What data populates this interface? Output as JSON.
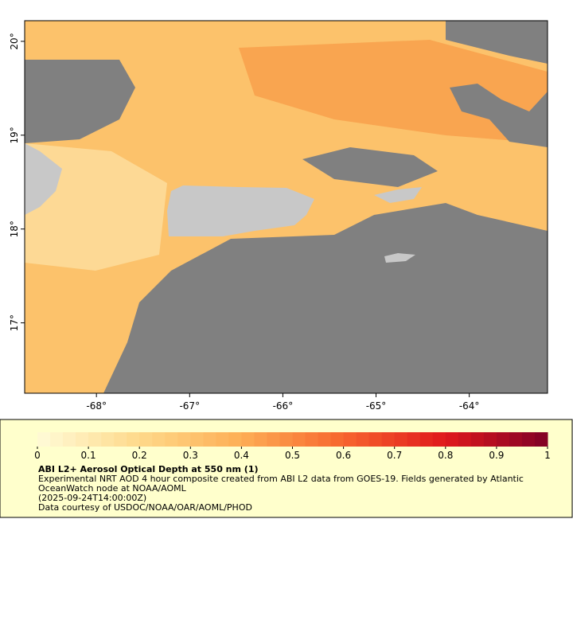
{
  "map": {
    "xlim": [
      -68.77,
      -63.16
    ],
    "ylim": [
      16.25,
      20.22
    ],
    "xticks": [
      {
        "value": -68,
        "label": "-68°"
      },
      {
        "value": -67,
        "label": "-67°"
      },
      {
        "value": -66,
        "label": "-66°"
      },
      {
        "value": -65,
        "label": "-65°"
      },
      {
        "value": -64,
        "label": "-64°"
      }
    ],
    "yticks": [
      {
        "value": 17,
        "label": "17°"
      },
      {
        "value": 18,
        "label": "18°"
      },
      {
        "value": 19,
        "label": "19°"
      },
      {
        "value": 20,
        "label": "20°"
      }
    ]
  },
  "colorbar": {
    "lim": [
      0,
      1
    ],
    "steps": 40,
    "colors": [
      "#fffbd8",
      "#fed98a",
      "#fdae55",
      "#f7652e",
      "#e0181c",
      "#800026"
    ],
    "ticks": [
      0,
      0.1,
      0.2,
      0.3,
      0.4,
      0.5,
      0.6,
      0.7,
      0.8,
      0.9,
      1
    ]
  },
  "caption": {
    "title": "ABI L2+ Aerosol Optical Depth at 550 nm (1)",
    "lines": [
      "Experimental NRT AOD 4 hour composite created from ABI L2 data from GOES-19. Fields generated by Atlantic",
      "OceanWatch node at NOAA/AOML",
      "(2025-09-24T14:00:00Z)",
      "Data courtesy of USDOC/NOAA/OAR/AOML/PHOD"
    ]
  }
}
